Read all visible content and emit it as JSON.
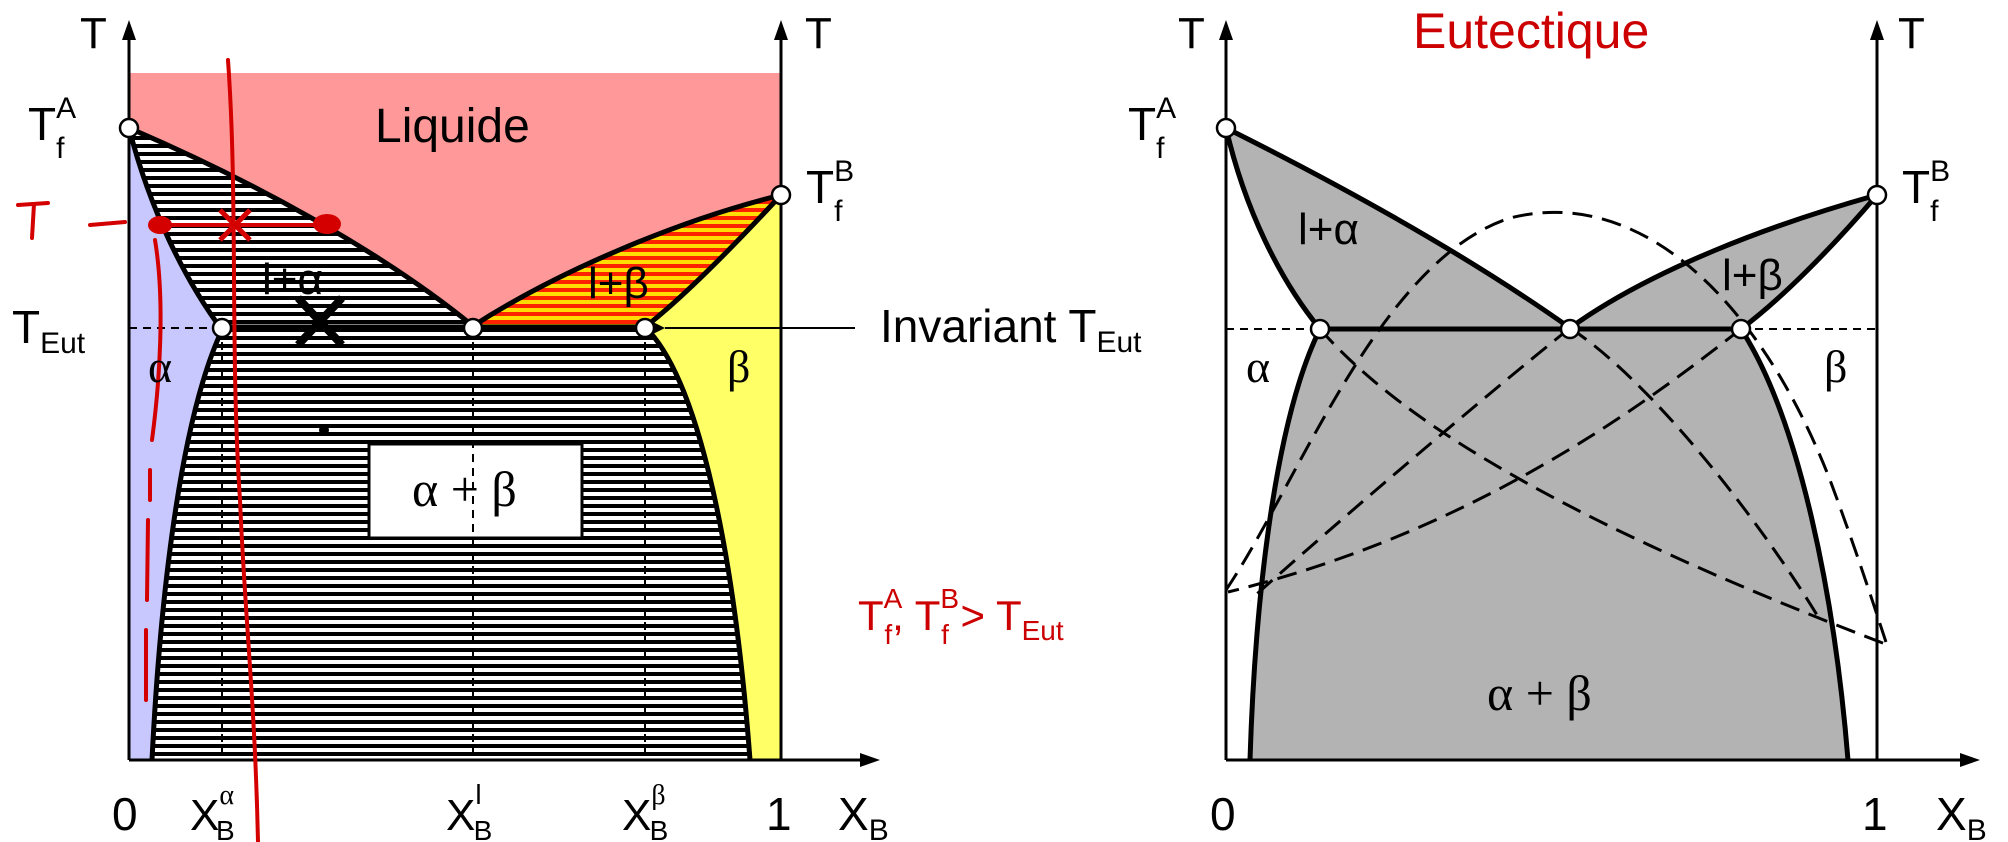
{
  "left_diagram": {
    "axis_t_left": "T",
    "axis_t_right": "T",
    "tfa": {
      "main": "T",
      "sup": "A",
      "sub": "f"
    },
    "tfb": {
      "main": "T",
      "sup": "B",
      "sub": "f"
    },
    "teut": {
      "main": "T",
      "sub": "Eut"
    },
    "region_liquid": "Liquide",
    "region_l_alpha": "l+α",
    "region_l_beta": "l+β",
    "region_alpha": "α",
    "region_beta": "β",
    "region_alpha_beta": "α + β",
    "invariant_label": "Invariant T",
    "invariant_sub": "Eut",
    "x_zero": "0",
    "x_one": "1",
    "x_axis": {
      "main": "X",
      "sub": "B"
    },
    "xb_alpha": {
      "main": "X",
      "sup": "α",
      "sub": "B"
    },
    "xb_l": {
      "main": "X",
      "sup": "l",
      "sub": "B"
    },
    "xb_beta": {
      "main": "X",
      "sup": "β",
      "sub": "B"
    },
    "colors": {
      "liquid": "#ff9999",
      "alpha": "#c8c8ff",
      "beta": "#ffff66",
      "hatch": "#000000",
      "red_ink": "#d40000"
    }
  },
  "condition": {
    "text_a": "T",
    "sup_a": "A",
    "sub_a": "f",
    "sep": ", ",
    "text_b": "T",
    "sup_b": "B",
    "sub_b": "f",
    "gt": " > T",
    "sub_eut": "Eut"
  },
  "right_diagram": {
    "title": "Eutectique",
    "axis_t_left": "T",
    "axis_t_right": "T",
    "tfa": {
      "main": "T",
      "sup": "A",
      "sub": "f"
    },
    "tfb": {
      "main": "T",
      "sup": "B",
      "sub": "f"
    },
    "region_l_alpha": "l+α",
    "region_l_beta": "l+β",
    "region_alpha": "α",
    "region_beta": "β",
    "region_alpha_beta": "α + β",
    "x_zero": "0",
    "x_one": "1",
    "x_axis": {
      "main": "X",
      "sub": "B"
    },
    "colors": {
      "fill": "#b3b3b3",
      "title": "#cc0000"
    }
  }
}
